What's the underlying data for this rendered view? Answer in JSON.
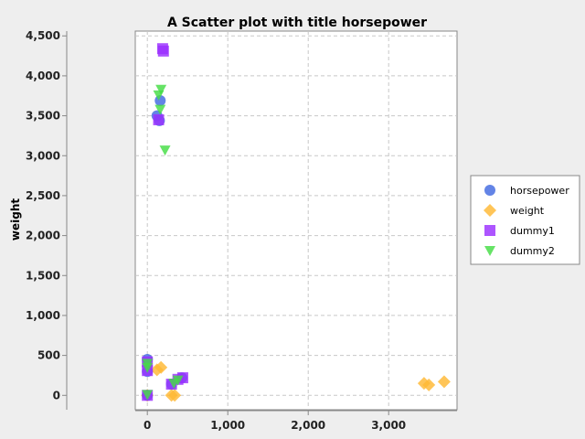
{
  "chart_data": {
    "type": "scatter",
    "title": "A Scatter plot with title horsepower",
    "xlabel": "",
    "ylabel": "weight",
    "xlim": [
      -150,
      3850
    ],
    "ylim": [
      -180,
      4560
    ],
    "xticks": [
      0,
      1000,
      2000,
      3000
    ],
    "xtick_labels": [
      "0",
      "1,000",
      "2,000",
      "3,000"
    ],
    "yticks": [
      0,
      500,
      1000,
      1500,
      2000,
      2500,
      3000,
      3500,
      4000,
      4500
    ],
    "ytick_labels": [
      "0",
      "500",
      "1,000",
      "1,500",
      "2,000",
      "2,500",
      "3,000",
      "3,500",
      "4,000",
      "4,500"
    ],
    "grid": true,
    "legend_position": "right",
    "series": [
      {
        "name": "horsepower",
        "color": "#4169E1",
        "marker": "circle",
        "points": [
          [
            120,
            3500
          ],
          [
            160,
            3690
          ],
          [
            150,
            3440
          ],
          [
            0,
            450
          ],
          [
            0,
            300
          ],
          [
            0,
            0
          ],
          [
            430,
            220
          ],
          [
            300,
            140
          ]
        ]
      },
      {
        "name": "weight",
        "color": "#FFB833",
        "marker": "diamond",
        "points": [
          [
            3440,
            150
          ],
          [
            3500,
            130
          ],
          [
            3690,
            170
          ],
          [
            120,
            320
          ],
          [
            170,
            350
          ],
          [
            300,
            0
          ],
          [
            340,
            0
          ],
          [
            0,
            0
          ]
        ]
      },
      {
        "name": "dummy1",
        "color": "#9B30FF",
        "marker": "square",
        "points": [
          [
            190,
            4340
          ],
          [
            200,
            4310
          ],
          [
            140,
            3450
          ],
          [
            0,
            420
          ],
          [
            0,
            310
          ],
          [
            0,
            0
          ],
          [
            440,
            220
          ],
          [
            300,
            140
          ],
          [
            380,
            200
          ]
        ]
      },
      {
        "name": "dummy2",
        "color": "#44DD44",
        "marker": "triangle-down",
        "points": [
          [
            170,
            3830
          ],
          [
            140,
            3760
          ],
          [
            160,
            3580
          ],
          [
            220,
            3070
          ],
          [
            0,
            400
          ],
          [
            0,
            350
          ],
          [
            0,
            10
          ],
          [
            330,
            150
          ],
          [
            380,
            190
          ]
        ]
      }
    ]
  }
}
